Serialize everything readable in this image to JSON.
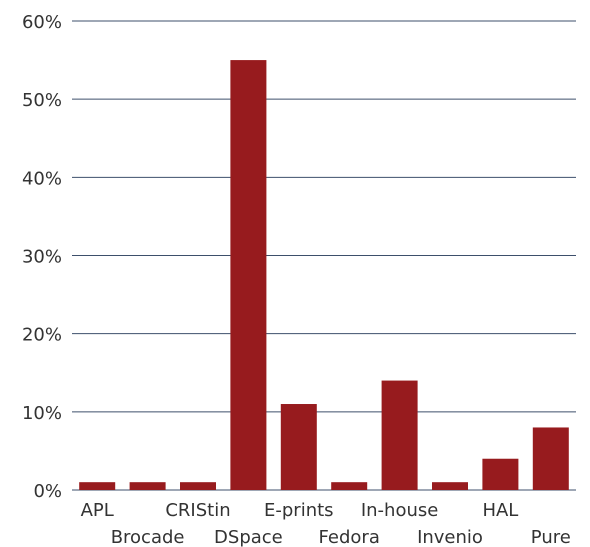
{
  "chart_data": {
    "type": "bar",
    "categories": [
      "APL",
      "Brocade",
      "CRIStin",
      "DSpace",
      "E-prints",
      "Fedora",
      "In-house",
      "Invenio",
      "HAL",
      "Pure"
    ],
    "values": [
      1,
      1,
      1,
      55,
      11,
      1,
      14,
      1,
      4,
      8
    ],
    "ylim": [
      0,
      60
    ],
    "yticks": [
      0,
      10,
      20,
      30,
      40,
      50,
      60
    ],
    "ytick_labels": [
      "0%",
      "10%",
      "20%",
      "30%",
      "40%",
      "50%",
      "60%"
    ],
    "title": "",
    "xlabel": "",
    "ylabel": "",
    "grid": true,
    "legend": "none",
    "colors": {
      "bar": "#971b1e",
      "grid": "#3d4f6b",
      "text": "#333333"
    }
  }
}
